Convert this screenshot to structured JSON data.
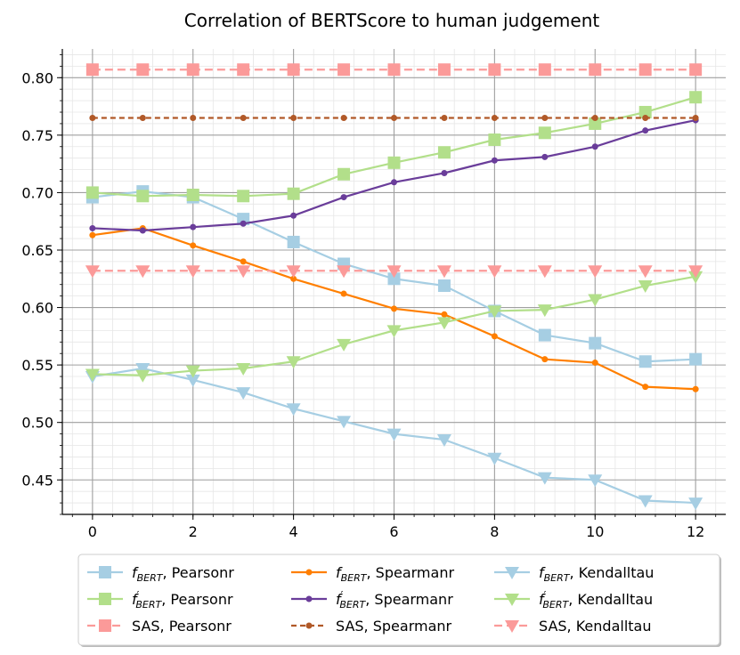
{
  "chart_data": {
    "type": "line",
    "title": "Correlation of BERTScore to human judgement",
    "xlabel": "",
    "ylabel": "",
    "xlim": [
      -0.6,
      12.6
    ],
    "ylim": [
      0.42,
      0.825
    ],
    "x": [
      0,
      1,
      2,
      3,
      4,
      5,
      6,
      7,
      8,
      9,
      10,
      11,
      12
    ],
    "xticks": [
      "0",
      "2",
      "4",
      "6",
      "8",
      "10",
      "12"
    ],
    "yticks": [
      "0.45",
      "0.50",
      "0.55",
      "0.60",
      "0.65",
      "0.70",
      "0.75",
      "0.80"
    ],
    "grid": true,
    "legend_placement": "bottom",
    "series": [
      {
        "name": "fBERT, Pearsonr",
        "label_f": "f",
        "label_sub": "BERT",
        "label_prime": "",
        "label_rest": ", Pearsonr",
        "color": "#a6cee3",
        "marker": "square",
        "dash": "solid",
        "values": [
          0.696,
          0.701,
          0.696,
          0.677,
          0.657,
          0.638,
          0.625,
          0.619,
          0.597,
          0.576,
          0.569,
          0.553,
          0.555
        ]
      },
      {
        "name": "f'BERT, Pearsonr",
        "label_f": "f",
        "label_sub": "BERT",
        "label_prime": "′",
        "label_rest": ", Pearsonr",
        "color": "#b2df8a",
        "marker": "square",
        "dash": "solid",
        "values": [
          0.7,
          0.697,
          0.698,
          0.697,
          0.699,
          0.716,
          0.726,
          0.735,
          0.746,
          0.752,
          0.76,
          0.77,
          0.783
        ]
      },
      {
        "name": "SAS, Pearsonr",
        "label_f": "",
        "label_sub": "",
        "label_prime": "",
        "label_rest": "SAS, Pearsonr",
        "color": "#fb9a99",
        "marker": "square",
        "dash": "dashed",
        "values": [
          0.807,
          0.807,
          0.807,
          0.807,
          0.807,
          0.807,
          0.807,
          0.807,
          0.807,
          0.807,
          0.807,
          0.807,
          0.807
        ]
      },
      {
        "name": "fBERT, Spearmanr",
        "label_f": "f",
        "label_sub": "BERT",
        "label_prime": "",
        "label_rest": ", Spearmanr",
        "color": "#ff7f00",
        "marker": "dot",
        "dash": "solid",
        "values": [
          0.663,
          0.669,
          0.654,
          0.64,
          0.625,
          0.612,
          0.599,
          0.594,
          0.575,
          0.555,
          0.552,
          0.531,
          0.529
        ]
      },
      {
        "name": "f'BERT, Spearmanr",
        "label_f": "f",
        "label_sub": "BERT",
        "label_prime": "′",
        "label_rest": ", Spearmanr",
        "color": "#6a3d9a",
        "marker": "dot",
        "dash": "solid",
        "values": [
          0.669,
          0.667,
          0.67,
          0.673,
          0.68,
          0.696,
          0.709,
          0.717,
          0.728,
          0.731,
          0.74,
          0.754,
          0.763
        ]
      },
      {
        "name": "SAS, Spearmanr",
        "label_f": "",
        "label_sub": "",
        "label_prime": "",
        "label_rest": "SAS, Spearmanr",
        "color": "#b15928",
        "marker": "dot",
        "dash": "dotted",
        "values": [
          0.765,
          0.765,
          0.765,
          0.765,
          0.765,
          0.765,
          0.765,
          0.765,
          0.765,
          0.765,
          0.765,
          0.765,
          0.765
        ]
      },
      {
        "name": "fBERT, Kendalltau",
        "label_f": "f",
        "label_sub": "BERT",
        "label_prime": "",
        "label_rest": ", Kendalltau",
        "color": "#a6cee3",
        "marker": "triangle",
        "dash": "solid",
        "values": [
          0.54,
          0.547,
          0.537,
          0.526,
          0.512,
          0.501,
          0.49,
          0.485,
          0.469,
          0.452,
          0.45,
          0.432,
          0.43
        ]
      },
      {
        "name": "f'BERT, Kendalltau",
        "label_f": "f",
        "label_sub": "BERT",
        "label_prime": "′",
        "label_rest": ", Kendalltau",
        "color": "#b2df8a",
        "marker": "triangle",
        "dash": "solid",
        "values": [
          0.542,
          0.541,
          0.545,
          0.547,
          0.553,
          0.568,
          0.58,
          0.587,
          0.597,
          0.598,
          0.607,
          0.619,
          0.627
        ]
      },
      {
        "name": "SAS, Kendalltau",
        "label_f": "",
        "label_sub": "",
        "label_prime": "",
        "label_rest": "SAS, Kendalltau",
        "color": "#fb9a99",
        "marker": "triangle",
        "dash": "dashed",
        "values": [
          0.632,
          0.632,
          0.632,
          0.632,
          0.632,
          0.632,
          0.632,
          0.632,
          0.632,
          0.632,
          0.632,
          0.632,
          0.632
        ]
      }
    ]
  }
}
